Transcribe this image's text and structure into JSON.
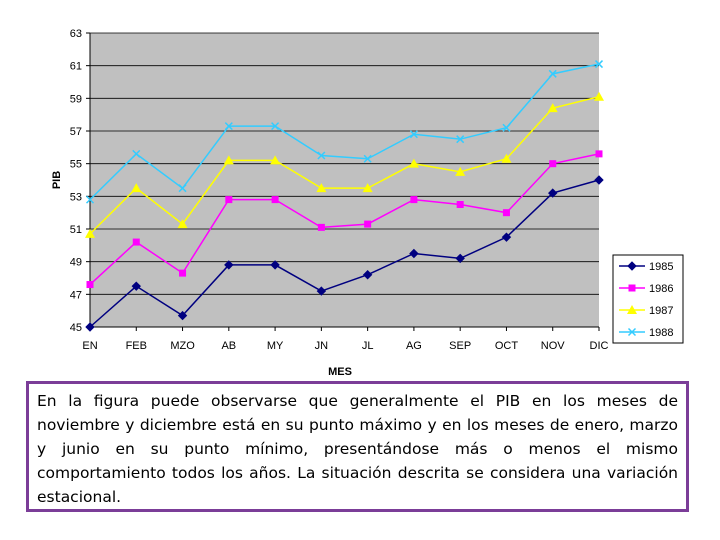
{
  "chart_data": {
    "type": "line",
    "title": "",
    "xlabel": "MES",
    "ylabel": "PIB",
    "ylim": [
      45,
      63
    ],
    "yticks": [
      45,
      47,
      49,
      51,
      53,
      55,
      57,
      59,
      61,
      63
    ],
    "categories": [
      "EN",
      "FEB",
      "MZO",
      "AB",
      "MY",
      "JN",
      "JL",
      "AG",
      "SEP",
      "OCT",
      "NOV",
      "DIC"
    ],
    "grid": true,
    "legend_position": "right",
    "series": [
      {
        "name": "1985",
        "color": "#000080",
        "marker": "diamond",
        "values": [
          45.0,
          47.5,
          45.7,
          48.8,
          48.8,
          47.2,
          48.2,
          49.5,
          49.2,
          50.5,
          53.2,
          54.0
        ]
      },
      {
        "name": "1986",
        "color": "#ff00ff",
        "marker": "square",
        "values": [
          47.6,
          50.2,
          48.3,
          52.8,
          52.8,
          51.1,
          51.3,
          52.8,
          52.5,
          52.0,
          55.0,
          55.6
        ]
      },
      {
        "name": "1987",
        "color": "#ffff00",
        "marker": "triangle",
        "values": [
          50.7,
          53.5,
          51.3,
          55.2,
          55.2,
          53.5,
          53.5,
          55.0,
          54.5,
          55.3,
          58.4,
          59.1
        ]
      },
      {
        "name": "1988",
        "color": "#33ccff",
        "marker": "x",
        "values": [
          52.8,
          55.6,
          53.5,
          57.3,
          57.3,
          55.5,
          55.3,
          56.8,
          56.5,
          57.2,
          60.5,
          61.1
        ]
      }
    ]
  },
  "caption": {
    "text": "En la figura puede observarse que generalmente el PIB en los meses de noviembre y diciembre está en su punto máximo y en los meses de enero, marzo y junio en su punto mínimo, presentándose más o menos el mismo comportamiento todos los años. La situación descrita se considera una variación estacional."
  }
}
